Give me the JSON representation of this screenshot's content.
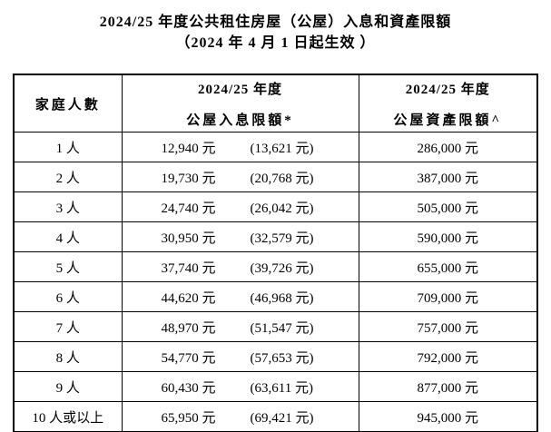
{
  "page": {
    "title_line1": "2024/25 年度公共租住房屋（公屋）入息和資產限額",
    "title_line2": "（2024 年 4 月 1 日起生效 ）"
  },
  "table": {
    "header": {
      "household": "家庭人數",
      "income_year": "2024/25 年度",
      "income_label": "公屋入息限額*",
      "asset_year": "2024/25 年度",
      "asset_label": "公屋資產限額^"
    },
    "rows": [
      {
        "household": "1 人",
        "income": "12,940 元",
        "income_note": "(13,621 元)",
        "asset": "286,000 元"
      },
      {
        "household": "2 人",
        "income": "19,730 元",
        "income_note": "(20,768 元)",
        "asset": "387,000 元"
      },
      {
        "household": "3 人",
        "income": "24,740 元",
        "income_note": "(26,042 元)",
        "asset": "505,000 元"
      },
      {
        "household": "4 人",
        "income": "30,950 元",
        "income_note": "(32,579 元)",
        "asset": "590,000 元"
      },
      {
        "household": "5 人",
        "income": "37,740 元",
        "income_note": "(39,726 元)",
        "asset": "655,000 元"
      },
      {
        "household": "6 人",
        "income": "44,620 元",
        "income_note": "(46,968 元)",
        "asset": "709,000 元"
      },
      {
        "household": "7 人",
        "income": "48,970 元",
        "income_note": "(51,547 元)",
        "asset": "757,000 元"
      },
      {
        "household": "8 人",
        "income": "54,770 元",
        "income_note": "(57,653 元)",
        "asset": "792,000 元"
      },
      {
        "household": "9 人",
        "income": "60,430 元",
        "income_note": "(63,611 元)",
        "asset": "877,000 元"
      },
      {
        "household": "10 人或以上",
        "income": "65,950 元",
        "income_note": "(69,421 元)",
        "asset": "945,000 元"
      }
    ]
  },
  "colors": {
    "text": "#000000",
    "border": "#000000",
    "background": "#ffffff"
  }
}
